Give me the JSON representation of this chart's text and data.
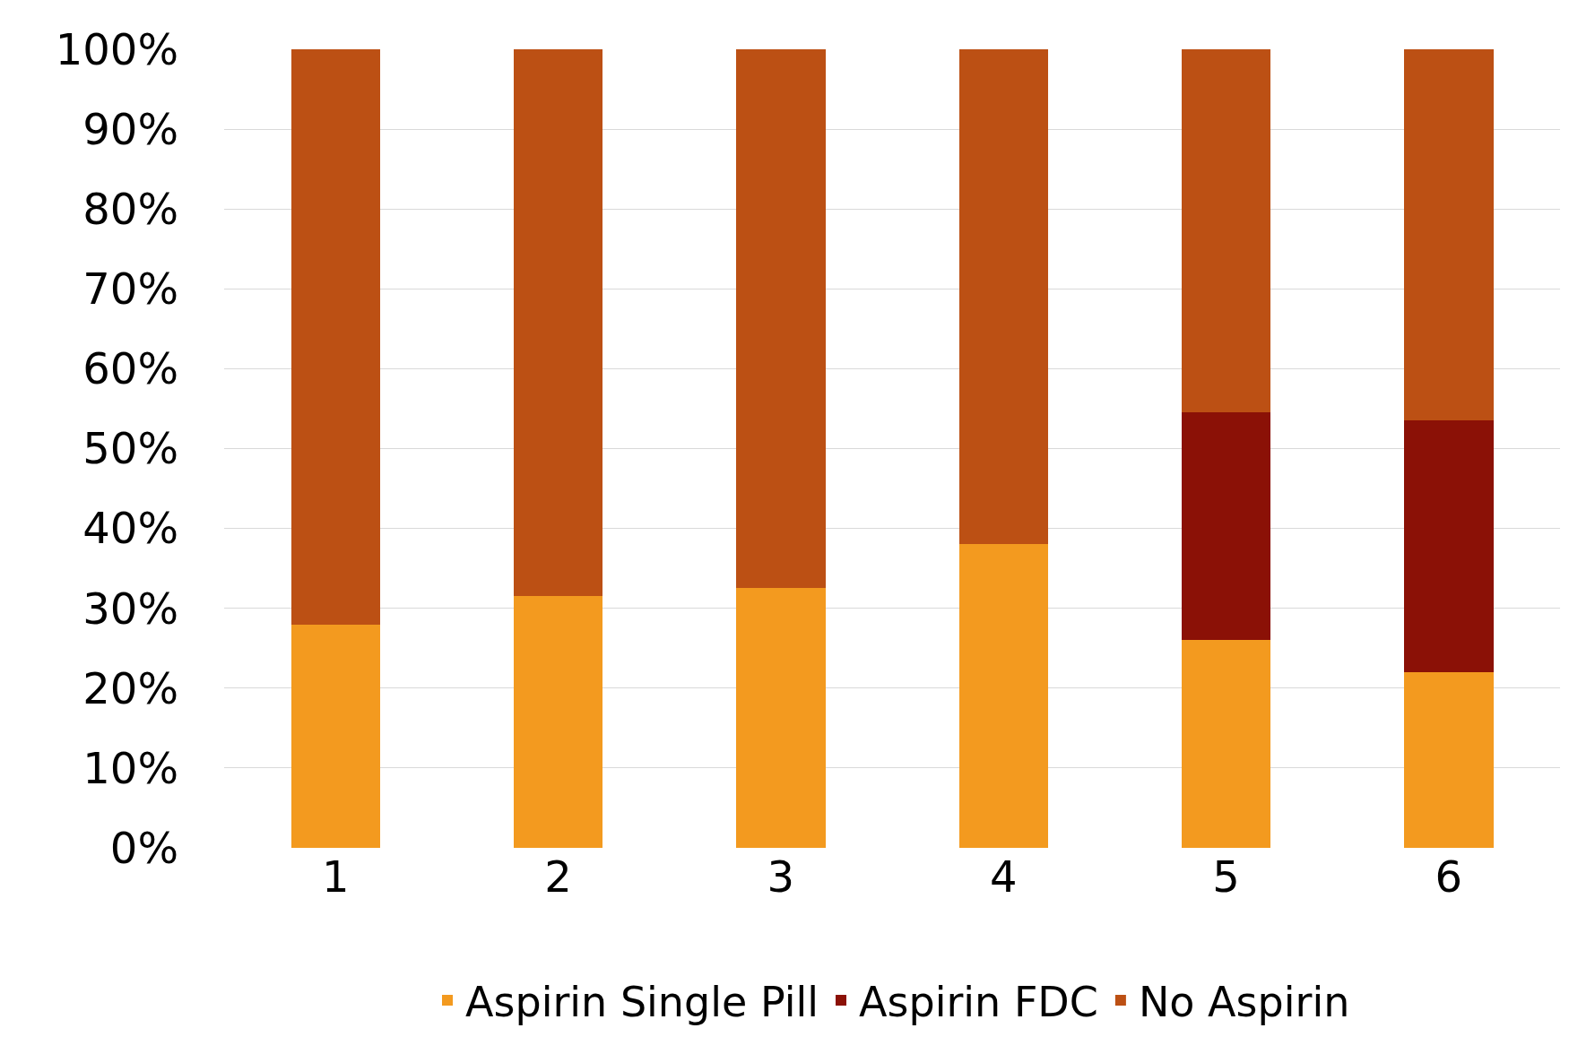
{
  "chart_data": {
    "type": "bar",
    "stacked": true,
    "categories": [
      "1",
      "2",
      "3",
      "4",
      "5",
      "6"
    ],
    "series": [
      {
        "name": "Aspirin Single Pill",
        "color": "#f39a1f",
        "values": [
          28,
          31.5,
          32.5,
          38,
          26,
          22
        ]
      },
      {
        "name": "Aspirin FDC",
        "color": "#8b1106",
        "values": [
          0,
          0,
          0,
          0,
          28.5,
          31.5
        ]
      },
      {
        "name": "No Aspirin",
        "color": "#bc5014",
        "values": [
          72,
          68.5,
          67.5,
          62,
          45.5,
          46.5
        ]
      }
    ],
    "ylim": [
      0,
      100
    ],
    "yticks": [
      {
        "value": 0,
        "label": "0%"
      },
      {
        "value": 10,
        "label": "10%"
      },
      {
        "value": 20,
        "label": "20%"
      },
      {
        "value": 30,
        "label": "30%"
      },
      {
        "value": 40,
        "label": "40%"
      },
      {
        "value": 50,
        "label": "50%"
      },
      {
        "value": 60,
        "label": "60%"
      },
      {
        "value": 70,
        "label": "70%"
      },
      {
        "value": 80,
        "label": "80%"
      },
      {
        "value": 90,
        "label": "90%"
      },
      {
        "value": 100,
        "label": "100%"
      }
    ],
    "grid": "y",
    "legend": "bottom"
  }
}
